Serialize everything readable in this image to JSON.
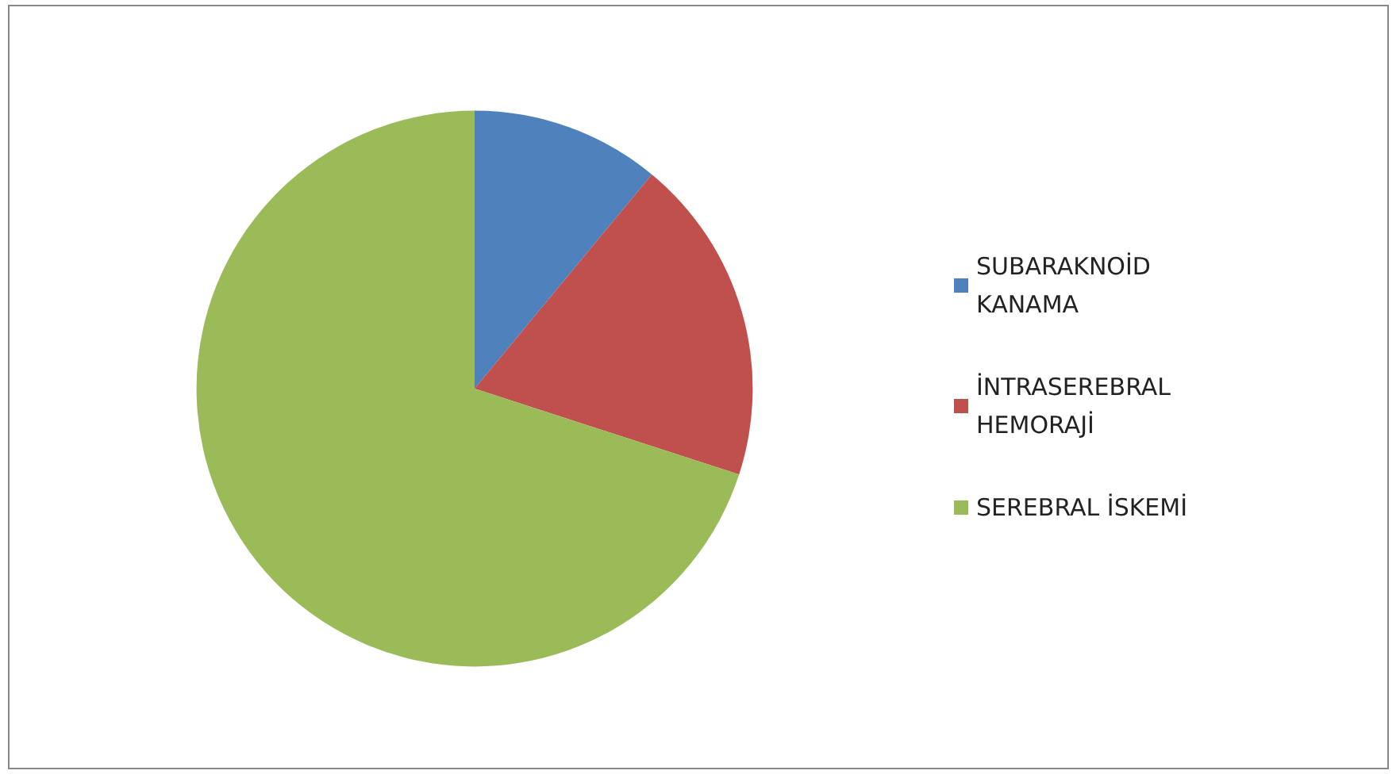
{
  "chart_data": {
    "type": "pie",
    "categories": [
      "SUBARAKNOİD KANAMA",
      "İNTRASEREBRAL HEMORAJİ",
      "SEREBRAL İSKEMİ"
    ],
    "values": [
      11,
      19,
      70
    ],
    "colors": [
      "#4f81bd",
      "#c0504d",
      "#9bbb59"
    ],
    "legend": "right"
  }
}
